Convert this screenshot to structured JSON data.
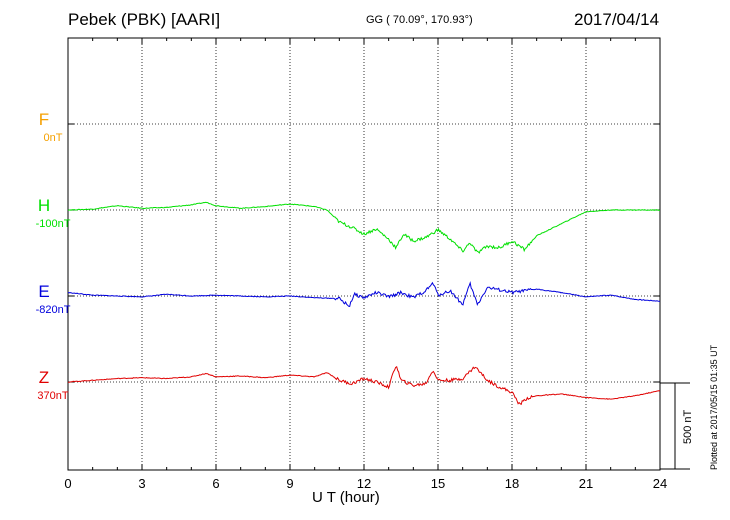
{
  "header": {
    "station": "Pebek (PBK)  [AARI]",
    "coordinates": "GG ( 70.09°, 170.93°)",
    "date": "2017/04/14"
  },
  "footer": {
    "plotted": "Plotted at 2017/05/15 01:35 UT"
  },
  "scale_bar": {
    "label": "500 nT",
    "value_nT": 500
  },
  "chart_data": {
    "type": "line",
    "title": "Pebek (PBK)  [AARI]",
    "xlabel": "U T (hour)",
    "xlim": [
      0,
      24
    ],
    "x_ticks": [
      0,
      3,
      6,
      9,
      12,
      15,
      18,
      21,
      24
    ],
    "x_tick_labels": [
      "0",
      "3",
      "6",
      "9",
      "12",
      "15",
      "18",
      "21",
      "24"
    ],
    "grid": true,
    "channels": [
      {
        "name": "F",
        "baseline": "0nT",
        "color": "#f5a000",
        "values": []
      },
      {
        "name": "H",
        "baseline": "-100nT",
        "color": "#00e000",
        "x": [
          0,
          1,
          2,
          3,
          4,
          5,
          5.6,
          6,
          7,
          8,
          9,
          10,
          10.5,
          11,
          11.5,
          12,
          12.5,
          13,
          13.3,
          13.6,
          14,
          14.5,
          15,
          15.5,
          16,
          16.3,
          16.6,
          17,
          17.5,
          18,
          18.5,
          19,
          20,
          21,
          22,
          23,
          24
        ],
        "values": [
          -100,
          -95,
          -75,
          -90,
          -85,
          -70,
          -55,
          -75,
          -90,
          -80,
          -65,
          -80,
          -100,
          -170,
          -200,
          -240,
          -210,
          -270,
          -320,
          -240,
          -280,
          -260,
          -215,
          -270,
          -340,
          -290,
          -350,
          -310,
          -320,
          -280,
          -330,
          -250,
          -180,
          -110,
          -100,
          -100,
          -100
        ]
      },
      {
        "name": "E",
        "baseline": "-820nT",
        "color": "#0000dd",
        "x": [
          0,
          1,
          2,
          3,
          4,
          5,
          6,
          7,
          8,
          9,
          10,
          11,
          11.4,
          11.6,
          12,
          12.5,
          13,
          13.5,
          14,
          14.5,
          14.8,
          15,
          15.5,
          16,
          16.3,
          16.6,
          17,
          17.5,
          18,
          18.5,
          19,
          20,
          21,
          22,
          23,
          24
        ],
        "values": [
          -800,
          -815,
          -820,
          -825,
          -810,
          -820,
          -815,
          -820,
          -825,
          -820,
          -830,
          -835,
          -880,
          -810,
          -830,
          -800,
          -825,
          -800,
          -830,
          -790,
          -745,
          -815,
          -790,
          -870,
          -750,
          -870,
          -770,
          -785,
          -800,
          -790,
          -780,
          -800,
          -825,
          -815,
          -840,
          -850
        ]
      },
      {
        "name": "Z",
        "baseline": "370nT",
        "color": "#e00000",
        "x": [
          0,
          1,
          2,
          3,
          4,
          5,
          5.6,
          6,
          7,
          8,
          9,
          10,
          10.5,
          11,
          11.5,
          12,
          12.5,
          13,
          13.3,
          13.5,
          14,
          14.5,
          14.8,
          15,
          15.5,
          16,
          16.5,
          17,
          17.5,
          18,
          18.3,
          18.6,
          19,
          20,
          21,
          22,
          23,
          24
        ],
        "values": [
          370,
          380,
          390,
          395,
          390,
          400,
          420,
          400,
          405,
          395,
          410,
          400,
          425,
          380,
          360,
          390,
          370,
          340,
          470,
          380,
          350,
          360,
          440,
          380,
          380,
          390,
          460,
          380,
          340,
          310,
          240,
          275,
          290,
          300,
          280,
          270,
          290,
          320
        ]
      }
    ]
  }
}
